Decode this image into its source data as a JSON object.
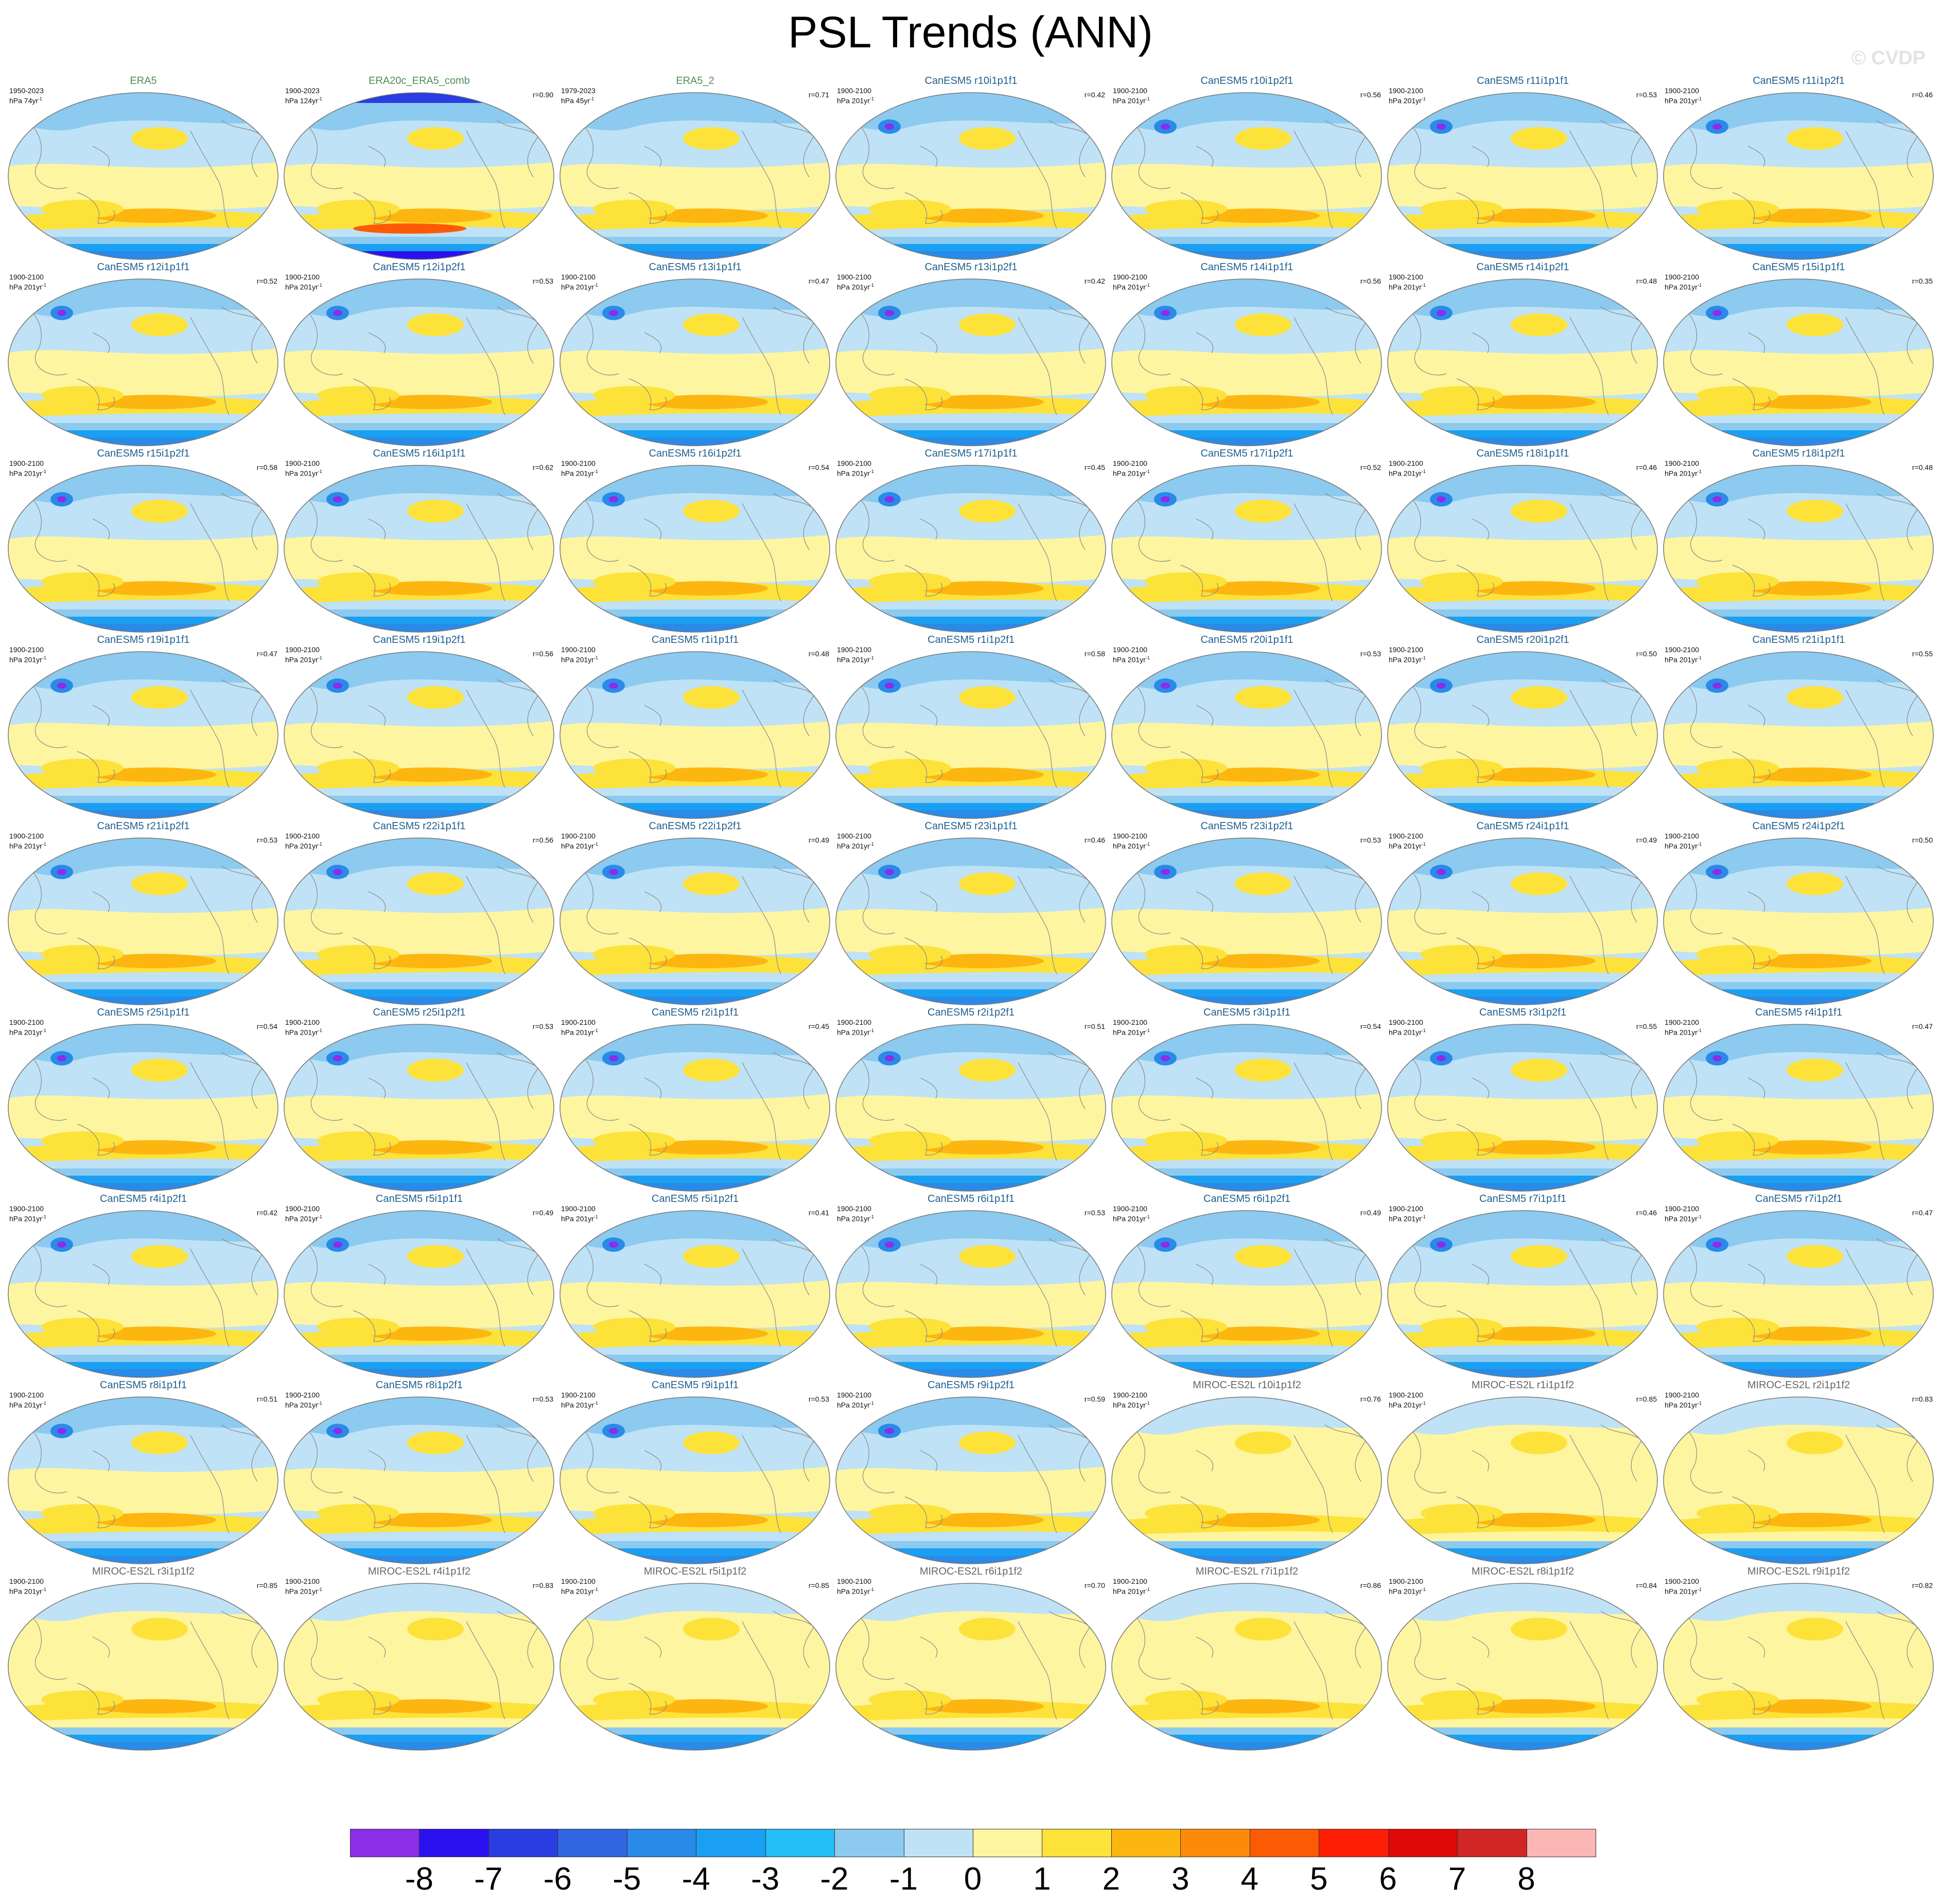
{
  "chart_data": {
    "type": "heatmap",
    "title": "PSL Trends (ANN)",
    "watermark": "© CVDP",
    "colorbar": {
      "levels": [
        "-8",
        "-7",
        "-6",
        "-5",
        "-4",
        "-3",
        "-2",
        "-1",
        "0",
        "1",
        "2",
        "3",
        "4",
        "5",
        "6",
        "7",
        "8"
      ],
      "colors": [
        "#8a2ee8",
        "#2b11f0",
        "#2a3de0",
        "#3266e0",
        "#2a8ae8",
        "#1aa0f2",
        "#22bef5",
        "#8ccaf0",
        "#bfe2f6",
        "#fdf5a0",
        "#fde23a",
        "#fdb510",
        "#fd8a08",
        "#fd5a05",
        "#fd1e05",
        "#de0808",
        "#d02626",
        "#fdb6b6"
      ]
    },
    "panels": [
      {
        "name": "ERA5",
        "period": "1950-2023",
        "unit": "hPa 74yr",
        "r": ""
      },
      {
        "name": "ERA20c_ERA5_comb",
        "period": "1900-2023",
        "unit": "hPa 124yr",
        "r": "r=0.90"
      },
      {
        "name": "ERA5_2",
        "period": "1979-2023",
        "unit": "hPa 45yr",
        "r": "r=0.71"
      },
      {
        "name": "CanESM5 r10i1p1f1",
        "period": "1900-2100",
        "unit": "hPa 201yr",
        "r": "r=0.42"
      },
      {
        "name": "CanESM5 r10i1p2f1",
        "period": "1900-2100",
        "unit": "hPa 201yr",
        "r": "r=0.56"
      },
      {
        "name": "CanESM5 r11i1p1f1",
        "period": "1900-2100",
        "unit": "hPa 201yr",
        "r": "r=0.53"
      },
      {
        "name": "CanESM5 r11i1p2f1",
        "period": "1900-2100",
        "unit": "hPa 201yr",
        "r": "r=0.46"
      },
      {
        "name": "CanESM5 r12i1p1f1",
        "period": "1900-2100",
        "unit": "hPa 201yr",
        "r": "r=0.52"
      },
      {
        "name": "CanESM5 r12i1p2f1",
        "period": "1900-2100",
        "unit": "hPa 201yr",
        "r": "r=0.53"
      },
      {
        "name": "CanESM5 r13i1p1f1",
        "period": "1900-2100",
        "unit": "hPa 201yr",
        "r": "r=0.47"
      },
      {
        "name": "CanESM5 r13i1p2f1",
        "period": "1900-2100",
        "unit": "hPa 201yr",
        "r": "r=0.42"
      },
      {
        "name": "CanESM5 r14i1p1f1",
        "period": "1900-2100",
        "unit": "hPa 201yr",
        "r": "r=0.56"
      },
      {
        "name": "CanESM5 r14i1p2f1",
        "period": "1900-2100",
        "unit": "hPa 201yr",
        "r": "r=0.48"
      },
      {
        "name": "CanESM5 r15i1p1f1",
        "period": "1900-2100",
        "unit": "hPa 201yr",
        "r": "r=0.35"
      },
      {
        "name": "CanESM5 r15i1p2f1",
        "period": "1900-2100",
        "unit": "hPa 201yr",
        "r": "r=0.58"
      },
      {
        "name": "CanESM5 r16i1p1f1",
        "period": "1900-2100",
        "unit": "hPa 201yr",
        "r": "r=0.62"
      },
      {
        "name": "CanESM5 r16i1p2f1",
        "period": "1900-2100",
        "unit": "hPa 201yr",
        "r": "r=0.54"
      },
      {
        "name": "CanESM5 r17i1p1f1",
        "period": "1900-2100",
        "unit": "hPa 201yr",
        "r": "r=0.45"
      },
      {
        "name": "CanESM5 r17i1p2f1",
        "period": "1900-2100",
        "unit": "hPa 201yr",
        "r": "r=0.52"
      },
      {
        "name": "CanESM5 r18i1p1f1",
        "period": "1900-2100",
        "unit": "hPa 201yr",
        "r": "r=0.46"
      },
      {
        "name": "CanESM5 r18i1p2f1",
        "period": "1900-2100",
        "unit": "hPa 201yr",
        "r": "r=0.48"
      },
      {
        "name": "CanESM5 r19i1p1f1",
        "period": "1900-2100",
        "unit": "hPa 201yr",
        "r": "r=0.47"
      },
      {
        "name": "CanESM5 r19i1p2f1",
        "period": "1900-2100",
        "unit": "hPa 201yr",
        "r": "r=0.56"
      },
      {
        "name": "CanESM5 r1i1p1f1",
        "period": "1900-2100",
        "unit": "hPa 201yr",
        "r": "r=0.48"
      },
      {
        "name": "CanESM5 r1i1p2f1",
        "period": "1900-2100",
        "unit": "hPa 201yr",
        "r": "r=0.58"
      },
      {
        "name": "CanESM5 r20i1p1f1",
        "period": "1900-2100",
        "unit": "hPa 201yr",
        "r": "r=0.53"
      },
      {
        "name": "CanESM5 r20i1p2f1",
        "period": "1900-2100",
        "unit": "hPa 201yr",
        "r": "r=0.50"
      },
      {
        "name": "CanESM5 r21i1p1f1",
        "period": "1900-2100",
        "unit": "hPa 201yr",
        "r": "r=0.55"
      },
      {
        "name": "CanESM5 r21i1p2f1",
        "period": "1900-2100",
        "unit": "hPa 201yr",
        "r": "r=0.53"
      },
      {
        "name": "CanESM5 r22i1p1f1",
        "period": "1900-2100",
        "unit": "hPa 201yr",
        "r": "r=0.56"
      },
      {
        "name": "CanESM5 r22i1p2f1",
        "period": "1900-2100",
        "unit": "hPa 201yr",
        "r": "r=0.49"
      },
      {
        "name": "CanESM5 r23i1p1f1",
        "period": "1900-2100",
        "unit": "hPa 201yr",
        "r": "r=0.46"
      },
      {
        "name": "CanESM5 r23i1p2f1",
        "period": "1900-2100",
        "unit": "hPa 201yr",
        "r": "r=0.53"
      },
      {
        "name": "CanESM5 r24i1p1f1",
        "period": "1900-2100",
        "unit": "hPa 201yr",
        "r": "r=0.49"
      },
      {
        "name": "CanESM5 r24i1p2f1",
        "period": "1900-2100",
        "unit": "hPa 201yr",
        "r": "r=0.50"
      },
      {
        "name": "CanESM5 r25i1p1f1",
        "period": "1900-2100",
        "unit": "hPa 201yr",
        "r": "r=0.54"
      },
      {
        "name": "CanESM5 r25i1p2f1",
        "period": "1900-2100",
        "unit": "hPa 201yr",
        "r": "r=0.53"
      },
      {
        "name": "CanESM5 r2i1p1f1",
        "period": "1900-2100",
        "unit": "hPa 201yr",
        "r": "r=0.45"
      },
      {
        "name": "CanESM5 r2i1p2f1",
        "period": "1900-2100",
        "unit": "hPa 201yr",
        "r": "r=0.51"
      },
      {
        "name": "CanESM5 r3i1p1f1",
        "period": "1900-2100",
        "unit": "hPa 201yr",
        "r": "r=0.54"
      },
      {
        "name": "CanESM5 r3i1p2f1",
        "period": "1900-2100",
        "unit": "hPa 201yr",
        "r": "r=0.55"
      },
      {
        "name": "CanESM5 r4i1p1f1",
        "period": "1900-2100",
        "unit": "hPa 201yr",
        "r": "r=0.47"
      },
      {
        "name": "CanESM5 r4i1p2f1",
        "period": "1900-2100",
        "unit": "hPa 201yr",
        "r": "r=0.42"
      },
      {
        "name": "CanESM5 r5i1p1f1",
        "period": "1900-2100",
        "unit": "hPa 201yr",
        "r": "r=0.49"
      },
      {
        "name": "CanESM5 r5i1p2f1",
        "period": "1900-2100",
        "unit": "hPa 201yr",
        "r": "r=0.41"
      },
      {
        "name": "CanESM5 r6i1p1f1",
        "period": "1900-2100",
        "unit": "hPa 201yr",
        "r": "r=0.53"
      },
      {
        "name": "CanESM5 r6i1p2f1",
        "period": "1900-2100",
        "unit": "hPa 201yr",
        "r": "r=0.49"
      },
      {
        "name": "CanESM5 r7i1p1f1",
        "period": "1900-2100",
        "unit": "hPa 201yr",
        "r": "r=0.46"
      },
      {
        "name": "CanESM5 r7i1p2f1",
        "period": "1900-2100",
        "unit": "hPa 201yr",
        "r": "r=0.47"
      },
      {
        "name": "CanESM5 r8i1p1f1",
        "period": "1900-2100",
        "unit": "hPa 201yr",
        "r": "r=0.51"
      },
      {
        "name": "CanESM5 r8i1p2f1",
        "period": "1900-2100",
        "unit": "hPa 201yr",
        "r": "r=0.53"
      },
      {
        "name": "CanESM5 r9i1p1f1",
        "period": "1900-2100",
        "unit": "hPa 201yr",
        "r": "r=0.53"
      },
      {
        "name": "CanESM5 r9i1p2f1",
        "period": "1900-2100",
        "unit": "hPa 201yr",
        "r": "r=0.59"
      },
      {
        "name": "MIROC-ES2L r10i1p1f2",
        "period": "1900-2100",
        "unit": "hPa 201yr",
        "r": "r=0.76"
      },
      {
        "name": "MIROC-ES2L r1i1p1f2",
        "period": "1900-2100",
        "unit": "hPa 201yr",
        "r": "r=0.85"
      },
      {
        "name": "MIROC-ES2L r2i1p1f2",
        "period": "1900-2100",
        "unit": "hPa 201yr",
        "r": "r=0.83"
      },
      {
        "name": "MIROC-ES2L r3i1p1f2",
        "period": "1900-2100",
        "unit": "hPa 201yr",
        "r": "r=0.85"
      },
      {
        "name": "MIROC-ES2L r4i1p1f2",
        "period": "1900-2100",
        "unit": "hPa 201yr",
        "r": "r=0.83"
      },
      {
        "name": "MIROC-ES2L r5i1p1f2",
        "period": "1900-2100",
        "unit": "hPa 201yr",
        "r": "r=0.85"
      },
      {
        "name": "MIROC-ES2L r6i1p1f2",
        "period": "1900-2100",
        "unit": "hPa 201yr",
        "r": "r=0.70"
      },
      {
        "name": "MIROC-ES2L r7i1p1f2",
        "period": "1900-2100",
        "unit": "hPa 201yr",
        "r": "r=0.86"
      },
      {
        "name": "MIROC-ES2L r8i1p1f2",
        "period": "1900-2100",
        "unit": "hPa 201yr",
        "r": "r=0.84"
      },
      {
        "name": "MIROC-ES2L r9i1p1f2",
        "period": "1900-2100",
        "unit": "hPa 201yr",
        "r": "r=0.82"
      }
    ]
  }
}
